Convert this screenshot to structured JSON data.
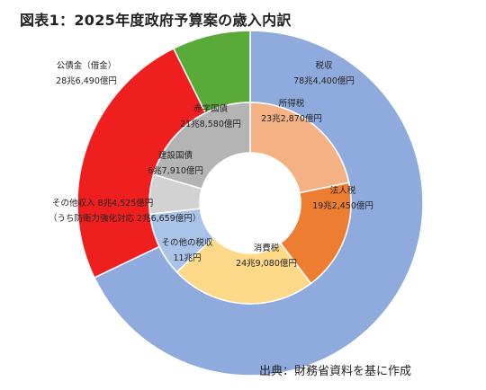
{
  "chart_data": {
    "type": "donut",
    "title": "図表1：2025年度政府予算案の歳入内訳",
    "source": "出典：財務省資料を基に作成",
    "unit": "億円",
    "outer_ring": [
      {
        "name": "税収",
        "value_text": "78兆4,400億円",
        "value": 784400,
        "color": "#8faadc"
      },
      {
        "name": "公債金（借金）",
        "value_text": "28兆6,490億円",
        "value": 286490,
        "color": "#ef1f1f"
      },
      {
        "name": "その他収入",
        "value_text": "8兆4,525億円",
        "sub_label": "（うち防衛力強化対応 2兆6,659億円）",
        "value": 84525,
        "color": "#5aaa3a"
      }
    ],
    "inner_ring": [
      {
        "name": "所得税",
        "value_text": "23兆2,870億円",
        "value": 232870,
        "color": "#f4b183"
      },
      {
        "name": "法人税",
        "value_text": "19兆2,450億円",
        "value": 192450,
        "color": "#ed7d31"
      },
      {
        "name": "消費税",
        "value_text": "24兆9,080億円",
        "value": 249080,
        "color": "#ffd98a"
      },
      {
        "name": "その他の税収",
        "value_text": "11兆円",
        "value": 110000,
        "color": "#a9c4e8"
      },
      {
        "name": "建設国債",
        "value_text": "6兆7,910億円",
        "value": 67910,
        "color": "#d2d2d2"
      },
      {
        "name": "赤字国債",
        "value_text": "21兆8,580億円",
        "value": 218580,
        "color": "#b4b4b4"
      }
    ]
  }
}
